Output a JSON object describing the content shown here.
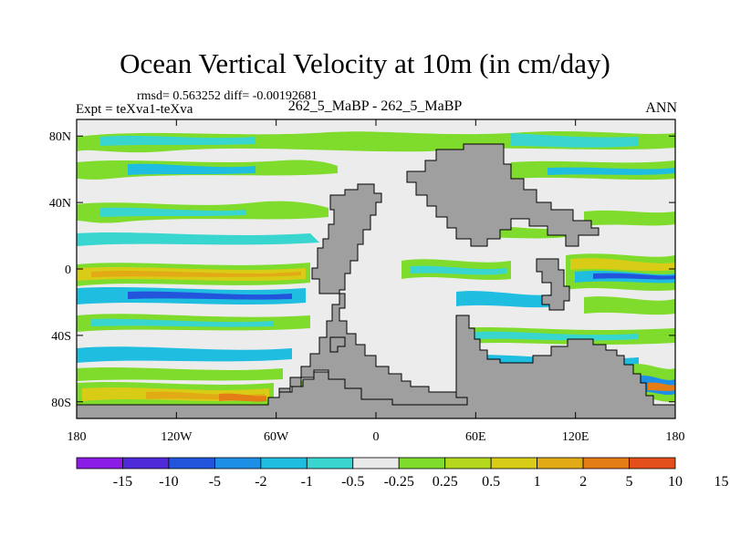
{
  "title": "Ocean Vertical Velocity at 10m (in cm/day)",
  "stats_line": "rmsd= 0.563252 diff= -0.00192681",
  "experiment_label": "Expt = teXva1-teXva",
  "case_label": "262_5_MaBP - 262_5_MaBP",
  "season_label": "ANN",
  "map": {
    "projection": "cylindrical equidistant",
    "lon_range": [
      -180,
      180
    ],
    "lat_range": [
      -90,
      90
    ],
    "lat_ticks": [
      {
        "value": 80,
        "label": "80N"
      },
      {
        "value": 40,
        "label": "40N"
      },
      {
        "value": 0,
        "label": "0"
      },
      {
        "value": -40,
        "label": "40S"
      },
      {
        "value": -80,
        "label": "80S"
      }
    ],
    "lon_ticks": [
      {
        "value": -180,
        "label": "180"
      },
      {
        "value": -120,
        "label": "120W"
      },
      {
        "value": -60,
        "label": "60W"
      },
      {
        "value": 0,
        "label": "0"
      },
      {
        "value": 60,
        "label": "60E"
      },
      {
        "value": 120,
        "label": "120E"
      },
      {
        "value": 180,
        "label": "180"
      }
    ],
    "land_color": "#9f9f9f",
    "ocean_background": "#ececec"
  },
  "colorbar": {
    "colors": [
      "#8b1ce6",
      "#4f2ad9",
      "#2255dc",
      "#1e8fe6",
      "#1fbde0",
      "#39d6cf",
      "#e9e9e9",
      "#7fdc2c",
      "#b4d91c",
      "#d8cc16",
      "#e2aa14",
      "#e57d16",
      "#e3501b"
    ],
    "labels": [
      "-15",
      "-10",
      "-5",
      "-2",
      "-1",
      "-0.5",
      "-0.25",
      "0.25",
      "0.5",
      "1",
      "2",
      "5",
      "10",
      "15"
    ]
  }
}
